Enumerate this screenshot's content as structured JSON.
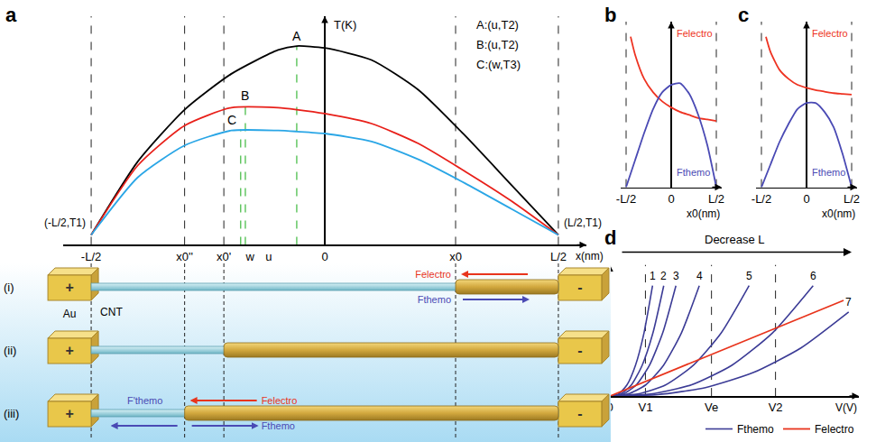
{
  "chart_data": [
    {
      "panel": "a",
      "type": "line",
      "grid": false,
      "tick_labels": "x",
      "x_label": "x(nm)",
      "y_label": "T(K)",
      "xlim": [
        -0.56,
        0.56
      ],
      "ylim": [
        0,
        1.15
      ],
      "xticks": [
        {
          "value": -0.5,
          "label": "-L/2"
        },
        {
          "value": -0.3,
          "label": "x0''"
        },
        {
          "value": -0.216,
          "label": "x0'"
        },
        {
          "value": -0.16,
          "label": "w"
        },
        {
          "value": -0.12,
          "label": "u"
        },
        0,
        {
          "value": 0.28,
          "label": "x0"
        },
        {
          "value": 0.5,
          "label": "L/2"
        }
      ],
      "dashed_lines": [
        -0.5,
        -0.3,
        -0.216,
        0.28,
        0.5
      ],
      "series": [
        {
          "color": "#000000",
          "x": [
            -0.5,
            -0.4,
            -0.3,
            -0.2,
            -0.1,
            -0.06,
            0,
            0.1,
            0.2,
            0.3,
            0.4,
            0.5
          ],
          "values": [
            0.05,
            0.42,
            0.68,
            0.86,
            0.98,
            1.0,
            0.99,
            0.93,
            0.78,
            0.55,
            0.3,
            0.05
          ]
        },
        {
          "color": "#e8201a",
          "x": [
            -0.5,
            -0.4,
            -0.3,
            -0.2,
            -0.1,
            -0.06,
            0,
            0.1,
            0.2,
            0.3,
            0.4,
            0.5
          ],
          "values": [
            0.05,
            0.4,
            0.6,
            0.69,
            0.69,
            0.68,
            0.66,
            0.61,
            0.51,
            0.37,
            0.22,
            0.05
          ]
        },
        {
          "color": "#2aa6e6",
          "x": [
            -0.5,
            -0.4,
            -0.3,
            -0.2,
            -0.1,
            -0.06,
            0,
            0.1,
            0.2,
            0.3,
            0.4,
            0.5
          ],
          "values": [
            0.05,
            0.34,
            0.5,
            0.575,
            0.575,
            0.57,
            0.56,
            0.52,
            0.43,
            0.31,
            0.18,
            0.05
          ]
        }
      ],
      "points": [
        {
          "label": "A",
          "x": -0.06,
          "y": 1.0,
          "color": "#3cb83c"
        },
        {
          "label": "B",
          "x": -0.17,
          "y": 0.7,
          "color": "#3cb83c"
        },
        {
          "label": "C",
          "x": -0.18,
          "y": 0.58,
          "color": "#3cb83c"
        }
      ],
      "notes": [
        "A:(u,T2)",
        "B:(u,T2)",
        "C:(w,T3)"
      ],
      "annotations": [
        {
          "text": "(-L/2,T1)",
          "x": -0.5,
          "y": 0.05
        },
        {
          "text": "(L/2,T1)",
          "x": 0.5,
          "y": 0.05
        }
      ]
    },
    {
      "panel": "b",
      "type": "line",
      "grid": false,
      "tick_labels": "x",
      "x_label": "x0(nm)",
      "xlim": [
        -0.56,
        0.56
      ],
      "ylim": [
        0,
        1.1
      ],
      "xticks": [
        {
          "value": -0.5,
          "label": "-L/2"
        },
        0,
        {
          "value": 0.5,
          "label": "L/2"
        }
      ],
      "dashed_lines": [
        -0.5,
        0.5
      ],
      "series": [
        {
          "name": "Felectro",
          "color": "#ee3322",
          "x": [
            -0.45,
            -0.4,
            -0.3,
            -0.2,
            -0.1,
            0,
            0.1,
            0.2,
            0.3,
            0.4,
            0.5
          ],
          "values": [
            1.0,
            0.88,
            0.72,
            0.63,
            0.57,
            0.53,
            0.5,
            0.48,
            0.46,
            0.45,
            0.44
          ]
        },
        {
          "name": "Fthemo",
          "color": "#4a4ab4",
          "x": [
            -0.5,
            -0.4,
            -0.3,
            -0.2,
            -0.1,
            0,
            0.1,
            0.2,
            0.3,
            0.4,
            0.5
          ],
          "values": [
            0,
            0.18,
            0.36,
            0.52,
            0.63,
            0.68,
            0.69,
            0.62,
            0.48,
            0.28,
            0
          ]
        }
      ]
    },
    {
      "panel": "c",
      "type": "line",
      "grid": false,
      "tick_labels": "x",
      "x_label": "x0(nm)",
      "xlim": [
        -0.56,
        0.56
      ],
      "ylim": [
        0,
        1.1
      ],
      "xticks": [
        {
          "value": -0.5,
          "label": "-L/2"
        },
        0,
        {
          "value": 0.5,
          "label": "L/2"
        }
      ],
      "dashed_lines": [
        -0.5,
        0.5
      ],
      "series": [
        {
          "name": "Felectro",
          "color": "#ee3322",
          "x": [
            -0.45,
            -0.4,
            -0.3,
            -0.2,
            -0.1,
            0,
            0.1,
            0.2,
            0.3,
            0.4,
            0.5
          ],
          "values": [
            1.0,
            0.9,
            0.78,
            0.72,
            0.68,
            0.66,
            0.645,
            0.635,
            0.625,
            0.62,
            0.615
          ]
        },
        {
          "name": "Fthemo",
          "color": "#4a4ab4",
          "x": [
            -0.5,
            -0.4,
            -0.3,
            -0.2,
            -0.1,
            0,
            0.1,
            0.2,
            0.3,
            0.4,
            0.5
          ],
          "values": [
            0,
            0.15,
            0.3,
            0.42,
            0.52,
            0.56,
            0.56,
            0.5,
            0.4,
            0.22,
            0
          ]
        }
      ]
    },
    {
      "panel": "d",
      "type": "line",
      "grid": false,
      "tick_labels": "x",
      "legend": "bottom",
      "x_label": "V(V)",
      "arrow_label": "Decrease L",
      "xlim": [
        0,
        2.45
      ],
      "ylim": [
        0,
        1.25
      ],
      "xticks": [
        0,
        {
          "value": 0.35,
          "label": "V1"
        },
        {
          "value": 1.0,
          "label": "Ve"
        },
        {
          "value": 1.63,
          "label": "V2"
        }
      ],
      "dashed_lines": [
        0.35,
        1.0,
        1.63
      ],
      "series": [
        {
          "name": "Fthemo",
          "color": "#3c3c96",
          "curves": [
            {
              "label": "1",
              "x": [
                0,
                0.084,
                0.168,
                0.252,
                0.336,
                0.42
              ],
              "values": [
                0,
                0.019,
                0.106,
                0.293,
                0.601,
                1.05
              ]
            },
            {
              "label": "2",
              "x": [
                0,
                0.106,
                0.212,
                0.318,
                0.424,
                0.53
              ],
              "values": [
                0,
                0.019,
                0.106,
                0.293,
                0.601,
                1.05
              ]
            },
            {
              "label": "3",
              "x": [
                0,
                0.13,
                0.26,
                0.39,
                0.52,
                0.65
              ],
              "values": [
                0,
                0.019,
                0.106,
                0.293,
                0.601,
                1.05
              ]
            },
            {
              "label": "4",
              "x": [
                0,
                0.176,
                0.352,
                0.528,
                0.704,
                0.88
              ],
              "values": [
                0,
                0.019,
                0.106,
                0.293,
                0.601,
                1.05
              ]
            },
            {
              "label": "5",
              "x": [
                0,
                0.274,
                0.548,
                0.822,
                1.096,
                1.37
              ],
              "values": [
                0,
                0.019,
                0.106,
                0.293,
                0.601,
                1.05
              ]
            },
            {
              "label": "6",
              "x": [
                0,
                0.4,
                0.8,
                1.2,
                1.6,
                2.0
              ],
              "values": [
                0,
                0.019,
                0.106,
                0.293,
                0.601,
                1.05
              ]
            },
            {
              "label": "7",
              "x": [
                0,
                0.47,
                0.94,
                1.41,
                1.88,
                2.35
              ],
              "values": [
                0,
                0.014,
                0.081,
                0.223,
                0.458,
                0.8
              ]
            }
          ]
        },
        {
          "name": "Felectro",
          "color": "#e8341c",
          "x": [
            0,
            2.3
          ],
          "values": [
            0,
            0.91
          ]
        }
      ]
    }
  ],
  "schematic": {
    "electrode": "Au",
    "tube": "CNT",
    "anode": "+",
    "cathode": "-",
    "electrode_edges": [
      -0.5,
      0.5
    ],
    "rows": [
      {
        "label": "(i)",
        "shell_start": 0.28,
        "arrows": [
          {
            "text": "Felectro",
            "direction": "left",
            "side": "top",
            "color": "#e8341c"
          },
          {
            "text": "Fthemo",
            "direction": "right",
            "side": "bottom",
            "color": "#4a4ab4"
          }
        ]
      },
      {
        "label": "(ii)",
        "shell_start": -0.216
      },
      {
        "label": "(iii)",
        "shell_start": -0.3,
        "arrows": [
          {
            "text": "Felectro",
            "direction": "left",
            "side": "top",
            "color": "#e8341c"
          },
          {
            "text": "F'themo",
            "direction": "left",
            "side": "bottom",
            "color": "#4a4ab4"
          },
          {
            "text": "Fthemo",
            "direction": "right",
            "side": "bottom",
            "color": "#4a4ab4"
          }
        ]
      }
    ]
  }
}
